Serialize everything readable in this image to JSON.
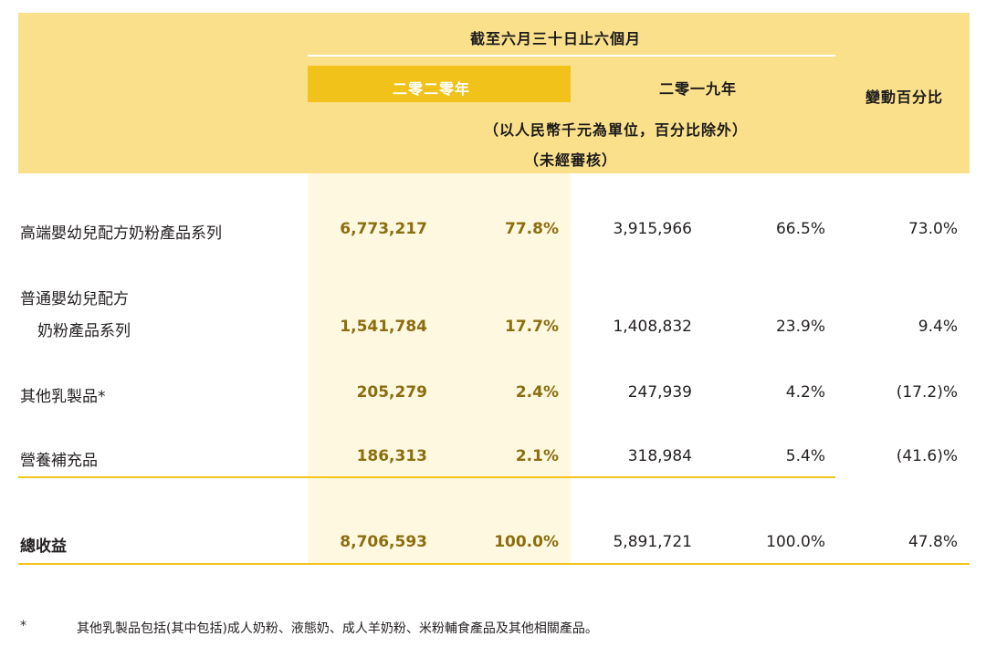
{
  "header": {
    "period": "截至六月三十日止六個月",
    "year_2020": "二零二零年",
    "year_2019": "二零一九年",
    "change": "變動百分比",
    "unit": "（以人民幣千元為單位，百分比除外）",
    "unaudited": "（未經審核）"
  },
  "rows": [
    {
      "label": "高端嬰幼兒配方奶粉產品系列",
      "v2020": "6,773,217",
      "p2020": "77.8%",
      "v2019": "3,915,966",
      "p2019": "66.5%",
      "change": "73.0%"
    },
    {
      "label": "普通嬰幼兒配方",
      "label2": "奶粉產品系列",
      "v2020": "1,541,784",
      "p2020": "17.7%",
      "v2019": "1,408,832",
      "p2019": "23.9%",
      "change": "9.4%"
    },
    {
      "label": "其他乳製品*",
      "v2020": "205,279",
      "p2020": "2.4%",
      "v2019": "247,939",
      "p2019": "4.2%",
      "change": "(17.2)%"
    },
    {
      "label": "營養補充品",
      "v2020": "186,313",
      "p2020": "2.1%",
      "v2019": "318,984",
      "p2019": "5.4%",
      "change": "(41.6)%"
    }
  ],
  "total": {
    "label": "總收益",
    "v2020": "8,706,593",
    "p2020": "100.0%",
    "v2019": "5,891,721",
    "p2019": "100.0%",
    "change": "47.8%"
  },
  "footnote": {
    "mark": "*",
    "text": "其他乳製品包括(其中包括)成人奶粉、液態奶、成人羊奶粉、米粉輔食產品及其他相關產品。"
  },
  "colors": {
    "header_band": "#fbe08c",
    "highlight_head": "#f0c21a",
    "highlight_column": "#fef8e1",
    "rule": "#f2c41c",
    "value_2020": "#8c6e0f"
  }
}
